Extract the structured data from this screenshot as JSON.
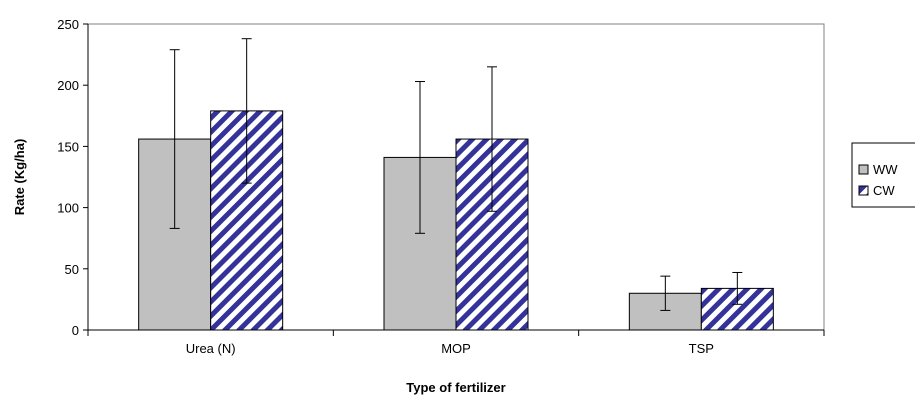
{
  "chart_data": {
    "type": "bar",
    "xlabel": "Type of fertilizer",
    "ylabel": "Rate  (Kg/ha)",
    "categories": [
      "Urea (N)",
      "MOP",
      "TSP"
    ],
    "ylim": [
      0,
      250
    ],
    "yticks": [
      0,
      50,
      100,
      150,
      200,
      250
    ],
    "grid": false,
    "legend_position": "right",
    "series": [
      {
        "name": "WW",
        "values": [
          156,
          141,
          30
        ],
        "error": [
          73,
          62,
          14
        ],
        "fill": "#c0c0c0",
        "pattern": "solid"
      },
      {
        "name": "CW",
        "values": [
          179,
          156,
          34
        ],
        "error": [
          59,
          59,
          13
        ],
        "fill": "#333399",
        "pattern": "diagonal-stripes"
      }
    ]
  }
}
